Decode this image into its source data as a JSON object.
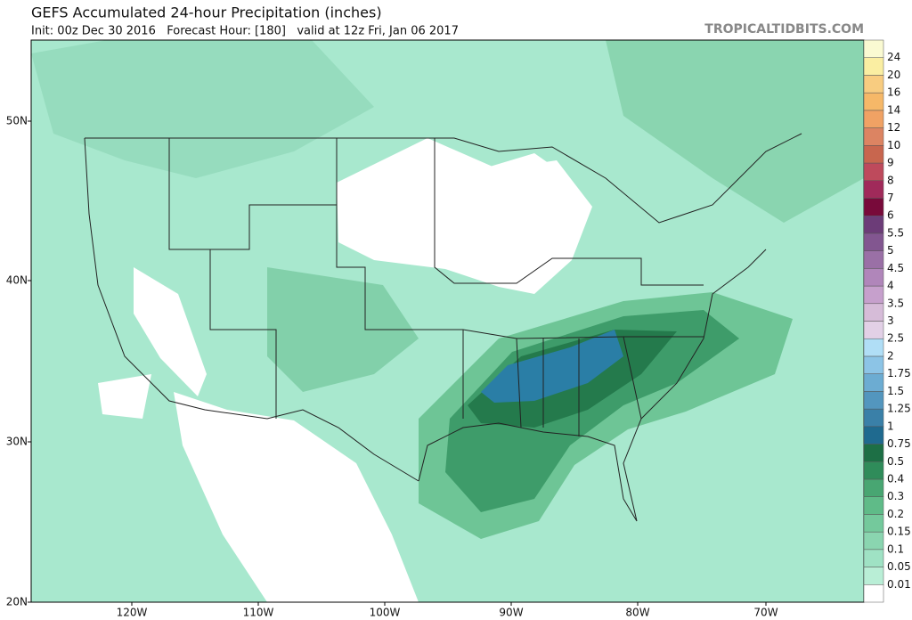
{
  "header": {
    "title": "GEFS Accumulated 24-hour Precipitation (inches)",
    "subtitle": "Init: 00z Dec 30 2016   Forecast Hour: [180]   valid at 12z Fri, Jan 06 2017",
    "site": "TROPICALTIDBITS.COM"
  },
  "map": {
    "lat_labels": [
      "50N",
      "40N",
      "30N",
      "20N"
    ],
    "lon_labels": [
      "120W",
      "110W",
      "100W",
      "90W",
      "80W",
      "70W"
    ]
  },
  "colorbar": {
    "labels": [
      "0.01",
      "0.05",
      "0.1",
      "0.15",
      "0.2",
      "0.3",
      "0.4",
      "0.5",
      "0.75",
      "1",
      "1.25",
      "1.5",
      "1.75",
      "2",
      "2.5",
      "3",
      "3.5",
      "4",
      "4.5",
      "5",
      "5.5",
      "6",
      "7",
      "8",
      "9",
      "10",
      "12",
      "14",
      "16",
      "20",
      "24"
    ],
    "colors": [
      "#ffffff",
      "#b9eed6",
      "#9fe2c4",
      "#8ad5b0",
      "#74c99c",
      "#5fbb88",
      "#48a672",
      "#2f8c5a",
      "#1d6f45",
      "#1f6a8f",
      "#3a80a8",
      "#5396be",
      "#6cacd2",
      "#8cc4e6",
      "#b0def6",
      "#e2d0e6",
      "#d6bcd8",
      "#c6a0cc",
      "#b086ba",
      "#9a70a6",
      "#825690",
      "#6c3c78",
      "#780a3a",
      "#a02a5a",
      "#be4a5c",
      "#c8664e",
      "#dc8462",
      "#f0a264",
      "#f6b868",
      "#f8cc80",
      "#faeea2",
      "#fafad2"
    ]
  }
}
